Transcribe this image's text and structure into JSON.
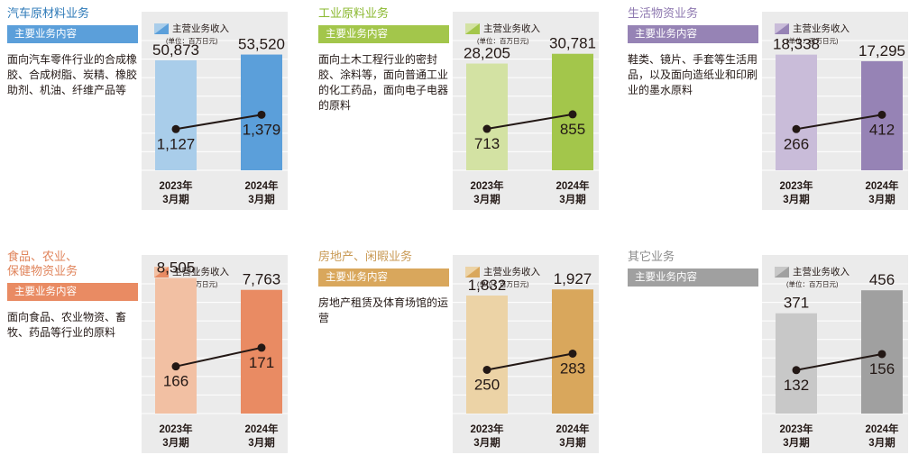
{
  "legend": {
    "series_label": "主营业务收入",
    "unit": "(单位：百万日元)"
  },
  "badge_label": "主要业务内容",
  "chart_data": [
    {
      "type": "bar",
      "segment_title": "汽车原材料业务",
      "description": "面向汽车零件行业的合成橡胶、合成树脂、炭精、橡胶助剂、机油、纤维产品等",
      "color_light": "#a9cdea",
      "color_dark": "#5b9fda",
      "title_color": "#2e7ab8",
      "categories": [
        "2023年\n3月期",
        "2024年\n3月期"
      ],
      "series": [
        {
          "name": "主营业务收入",
          "values": [
            50873,
            53520
          ],
          "labels": [
            "50,873",
            "53,520"
          ]
        },
        {
          "values": [
            1127,
            1379
          ],
          "labels": [
            "1,127",
            "1,379"
          ]
        }
      ],
      "ylim": [
        0,
        70000
      ]
    },
    {
      "type": "bar",
      "segment_title": "工业原料业务",
      "description": "面向土木工程行业的密封胶、涂料等，面向普通工业的化工药品，面向电子电器的原料",
      "color_light": "#d3e2a3",
      "color_dark": "#a3c64b",
      "title_color": "#8ab82e",
      "categories": [
        "2023年\n3月期",
        "2024年\n3月期"
      ],
      "series": [
        {
          "name": "主营业务收入",
          "values": [
            28205,
            30781
          ],
          "labels": [
            "28,205",
            "30,781"
          ]
        },
        {
          "values": [
            713,
            855
          ],
          "labels": [
            "713",
            "855"
          ]
        }
      ],
      "ylim": [
        0,
        40000
      ]
    },
    {
      "type": "bar",
      "segment_title": "生活物资业务",
      "description": "鞋类、镜片、手套等生活用品，以及面向造纸业和印刷业的墨水原料",
      "color_light": "#c9bcd9",
      "color_dark": "#9683b5",
      "title_color": "#8e78b0",
      "categories": [
        "2023年\n3月期",
        "2024年\n3月期"
      ],
      "series": [
        {
          "name": "主营业务收入",
          "values": [
            18338,
            17295
          ],
          "labels": [
            "18,338",
            "17,295"
          ]
        },
        {
          "values": [
            266,
            412
          ],
          "labels": [
            "266",
            "412"
          ]
        }
      ],
      "ylim": [
        0,
        24000
      ]
    },
    {
      "type": "bar",
      "segment_title": "食品、农业、\n保健物资业务",
      "description": "面向食品、农业物资、畜牧、药品等行业的原料",
      "color_light": "#f2c0a3",
      "color_dark": "#e98b63",
      "title_color": "#e0845b",
      "categories": [
        "2023年\n3月期",
        "2024年\n3月期"
      ],
      "series": [
        {
          "name": "主营业务收入",
          "values": [
            8505,
            7763
          ],
          "labels": [
            "8,505",
            "7,763"
          ]
        },
        {
          "values": [
            166,
            171
          ],
          "labels": [
            "166",
            "171"
          ]
        }
      ],
      "ylim": [
        0,
        9500
      ]
    },
    {
      "type": "bar",
      "segment_title": "房地产、闲暇业务",
      "description": "房地产租赁及体育场馆的运营",
      "color_light": "#ecd3a6",
      "color_dark": "#d9a75c",
      "title_color": "#c99a55",
      "categories": [
        "2023年\n3月期",
        "2024年\n3月期"
      ],
      "series": [
        {
          "name": "主营业务收入",
          "values": [
            1832,
            1927
          ],
          "labels": [
            "1,832",
            "1,927"
          ]
        },
        {
          "values": [
            250,
            283
          ],
          "labels": [
            "250",
            "283"
          ]
        }
      ],
      "ylim": [
        0,
        2350
      ]
    },
    {
      "type": "bar",
      "segment_title": "其它业务",
      "description": "",
      "color_light": "#c8c8c8",
      "color_dark": "#a0a0a0",
      "title_color": "#8a8a8a",
      "categories": [
        "2023年\n3月期",
        "2024年\n3月期"
      ],
      "series": [
        {
          "name": "主营业务收入",
          "values": [
            371,
            456
          ],
          "labels": [
            "371",
            "456"
          ]
        },
        {
          "values": [
            132,
            156
          ],
          "labels": [
            "132",
            "156"
          ]
        }
      ],
      "ylim": [
        0,
        560
      ]
    }
  ]
}
